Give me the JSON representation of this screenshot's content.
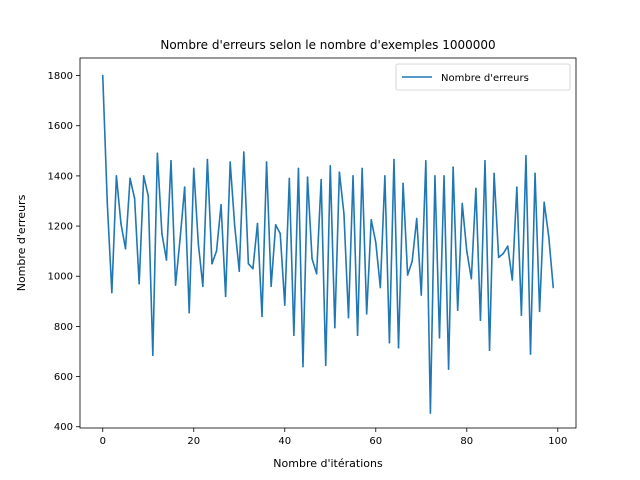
{
  "chart_data": {
    "type": "line",
    "title": "Nombre d'erreurs selon le nombre d'exemples 1000000",
    "xlabel": "Nombre d'itérations",
    "ylabel": "Nombre d'erreurs",
    "xlim": [
      -5,
      104
    ],
    "ylim": [
      395,
      1870
    ],
    "xticks": [
      0,
      20,
      40,
      60,
      80,
      100
    ],
    "yticks": [
      400,
      600,
      800,
      1000,
      1200,
      1400,
      1600,
      1800
    ],
    "grid": false,
    "legend_position": "top-right",
    "series": [
      {
        "name": "Nombre d'erreurs",
        "color": "#1f77b4",
        "x": [
          0,
          1,
          2,
          3,
          4,
          5,
          6,
          7,
          8,
          9,
          10,
          11,
          12,
          13,
          14,
          15,
          16,
          17,
          18,
          19,
          20,
          21,
          22,
          23,
          24,
          25,
          26,
          27,
          28,
          29,
          30,
          31,
          32,
          33,
          34,
          35,
          36,
          37,
          38,
          39,
          40,
          41,
          42,
          43,
          44,
          45,
          46,
          47,
          48,
          49,
          50,
          51,
          52,
          53,
          54,
          55,
          56,
          57,
          58,
          59,
          60,
          61,
          62,
          63,
          64,
          65,
          66,
          67,
          68,
          69,
          70,
          71,
          72,
          73,
          74,
          75,
          76,
          77,
          78,
          79,
          80,
          81,
          82,
          83,
          84,
          85,
          86,
          87,
          88,
          89,
          90,
          91,
          92,
          93,
          94,
          95,
          96,
          97,
          98,
          99
        ],
        "values": [
          1800,
          1290,
          935,
          1400,
          1210,
          1110,
          1390,
          1310,
          970,
          1400,
          1320,
          685,
          1490,
          1170,
          1065,
          1460,
          965,
          1150,
          1355,
          855,
          1430,
          1130,
          960,
          1465,
          1050,
          1100,
          1285,
          920,
          1455,
          1200,
          1020,
          1495,
          1050,
          1030,
          1210,
          840,
          1455,
          960,
          1205,
          1170,
          885,
          1390,
          765,
          1430,
          640,
          1395,
          1070,
          1010,
          1385,
          645,
          1440,
          795,
          1415,
          1250,
          835,
          1400,
          765,
          1430,
          850,
          1225,
          1135,
          955,
          1400,
          735,
          1465,
          715,
          1370,
          1005,
          1060,
          1230,
          925,
          1460,
          455,
          1400,
          755,
          1400,
          630,
          1435,
          865,
          1290,
          1100,
          990,
          1350,
          825,
          1460,
          705,
          1410,
          1075,
          1090,
          1120,
          985,
          1355,
          845,
          1480,
          690,
          1410,
          860,
          1295,
          1160,
          955
        ]
      }
    ]
  }
}
